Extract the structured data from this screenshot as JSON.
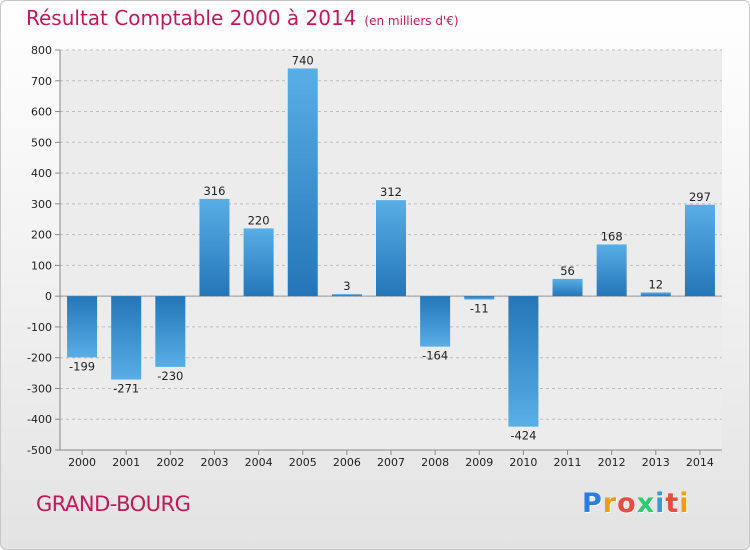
{
  "title": "Résultat Comptable 2000 à 2014",
  "subtitle": "(en milliers d'€)",
  "location": "GRAND-BOURG",
  "logo": {
    "letters": [
      "P",
      "r",
      "o",
      "x",
      "i",
      "t",
      "i"
    ],
    "colors": [
      "#2a7de1",
      "#f39c12",
      "#e74c3c",
      "#2ecc71",
      "#3498db",
      "#e74c3c",
      "#f39c12"
    ]
  },
  "chart_data": {
    "type": "bar",
    "title": "Résultat Comptable 2000 à 2014",
    "subtitle": "(en milliers d'€)",
    "categories": [
      "2000",
      "2001",
      "2002",
      "2003",
      "2004",
      "2005",
      "2006",
      "2007",
      "2008",
      "2009",
      "2010",
      "2011",
      "2012",
      "2013",
      "2014"
    ],
    "values": [
      -199,
      -271,
      -230,
      316,
      220,
      740,
      3,
      312,
      -164,
      -11,
      -424,
      56,
      168,
      12,
      297
    ],
    "value_labels": [
      "-199",
      "-271",
      "-230",
      "316",
      "220",
      "740",
      "3",
      "312",
      "-164",
      "-11",
      "-424",
      "56",
      "168",
      "12",
      "297"
    ],
    "ylim": [
      -500,
      800
    ],
    "yticks": [
      800,
      700,
      600,
      500,
      400,
      300,
      200,
      100,
      0,
      -100,
      -200,
      -300,
      -400,
      -500
    ],
    "ytick_labels": [
      "800",
      "700",
      "600",
      "500",
      "400",
      "300",
      "200",
      "100",
      "0",
      "-100",
      "-200",
      "-300",
      "-400",
      "-500"
    ],
    "grid": true,
    "bar_color": "#3f98d8",
    "xlabel": "",
    "ylabel": ""
  }
}
